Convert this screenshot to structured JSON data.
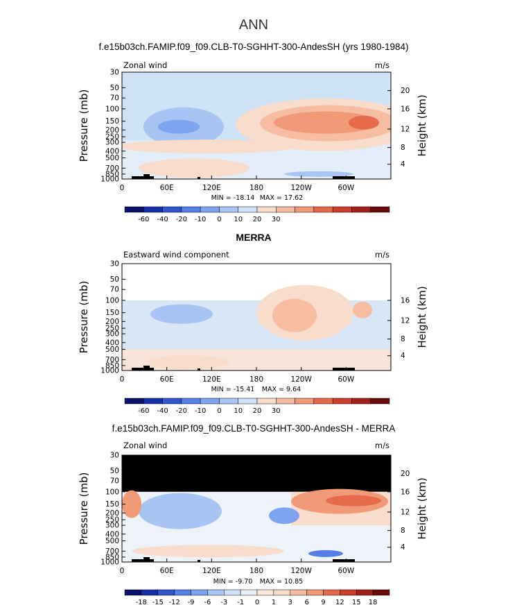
{
  "figure": {
    "main_title": "ANN"
  },
  "chart_data": [
    {
      "type": "heatmap",
      "panel": "model",
      "title": "f.e15b03ch.FAMIP.f09_f09.CLB-T0-SGHHT-300-AndesSH (yrs 1980-1984)",
      "left_label": "Zonal wind",
      "right_label": "m/s",
      "ylabel": "Pressure (mb)",
      "ylabel_right": "Height (km)",
      "yticks": [
        "30",
        "50",
        "70",
        "100",
        "150",
        "200",
        "250",
        "300",
        "400",
        "500",
        "700",
        "850",
        "1000"
      ],
      "yticks_right": [
        "20",
        "16",
        "12",
        "8",
        "4"
      ],
      "xticks": [
        "0",
        "60E",
        "120E",
        "180",
        "120W",
        "60W"
      ],
      "min_label": "MIN = -18.14",
      "max_label": "MAX = 17.62",
      "colorbar": {
        "tick_labels": [
          "-60",
          "-40",
          "-20",
          "-10",
          "0",
          "10",
          "20",
          "30"
        ],
        "colors": [
          "#08106a",
          "#1530a8",
          "#2f56cf",
          "#5580e6",
          "#7ea4ef",
          "#a8c4f3",
          "#cfdff6",
          "#f8dccc",
          "#f6bda3",
          "#f09a78",
          "#e66a4c",
          "#cc3d2a",
          "#a11f1a",
          "#6a0a0a"
        ]
      },
      "features": {
        "base_color": "#cfe3f6",
        "jet_low": "#a8c4f3",
        "jet_low_core": "#7ea4ef",
        "jet_high": "#f09a78",
        "jet_high_core": "#e66a4c",
        "surface_warm": "#f8dccc"
      }
    },
    {
      "type": "heatmap",
      "panel": "obs",
      "title": "MERRA",
      "left_label": "Eastward wind component",
      "right_label": "m/s",
      "ylabel": "Pressure (mb)",
      "ylabel_right": "Height (km)",
      "yticks": [
        "30",
        "50",
        "70",
        "100",
        "150",
        "200",
        "250",
        "300",
        "400",
        "500",
        "700",
        "850",
        "1000"
      ],
      "yticks_right": [
        "16",
        "12",
        "8",
        "4"
      ],
      "xticks": [
        "0",
        "60E",
        "120E",
        "180",
        "120W",
        "60W"
      ],
      "min_label": "MIN = -15.41",
      "max_label": "MAX = 9.64",
      "colorbar": {
        "tick_labels": [
          "-60",
          "-40",
          "-20",
          "-10",
          "0",
          "10",
          "20",
          "30"
        ],
        "colors": [
          "#08106a",
          "#1530a8",
          "#2f56cf",
          "#5580e6",
          "#7ea4ef",
          "#a8c4f3",
          "#cfdff6",
          "#f8dccc",
          "#f6bda3",
          "#f09a78",
          "#e66a4c",
          "#cc3d2a",
          "#a11f1a",
          "#6a0a0a"
        ]
      }
    },
    {
      "type": "heatmap",
      "panel": "difference",
      "title": "f.e15b03ch.FAMIP.f09_f09.CLB-T0-SGHHT-300-AndesSH - MERRA",
      "left_label": "Zonal wind",
      "right_label": "m/s",
      "ylabel": "Pressure (mb)",
      "ylabel_right": "Height (km)",
      "yticks": [
        "30",
        "50",
        "70",
        "100",
        "150",
        "200",
        "250",
        "300",
        "400",
        "500",
        "700",
        "850",
        "1000"
      ],
      "yticks_right": [
        "20",
        "16",
        "12",
        "8",
        "4"
      ],
      "xticks": [
        "0",
        "60E",
        "120E",
        "180",
        "120W",
        "60W"
      ],
      "min_label": "MIN = -9.70",
      "max_label": "MAX = 10.85",
      "colorbar": {
        "tick_labels": [
          "-18",
          "-15",
          "-12",
          "-9",
          "-6",
          "-3",
          "-1",
          "0",
          "1",
          "3",
          "6",
          "9",
          "12",
          "15",
          "18"
        ],
        "colors": [
          "#08106a",
          "#1530a8",
          "#2f56cf",
          "#5580e6",
          "#7ea4ef",
          "#a8c4f3",
          "#cfdff6",
          "#e8f0f8",
          "#f8e8dc",
          "#f8dccc",
          "#f6bda3",
          "#f09a78",
          "#e66a4c",
          "#cc3d2a",
          "#a11f1a",
          "#6a0a0a"
        ]
      }
    }
  ]
}
